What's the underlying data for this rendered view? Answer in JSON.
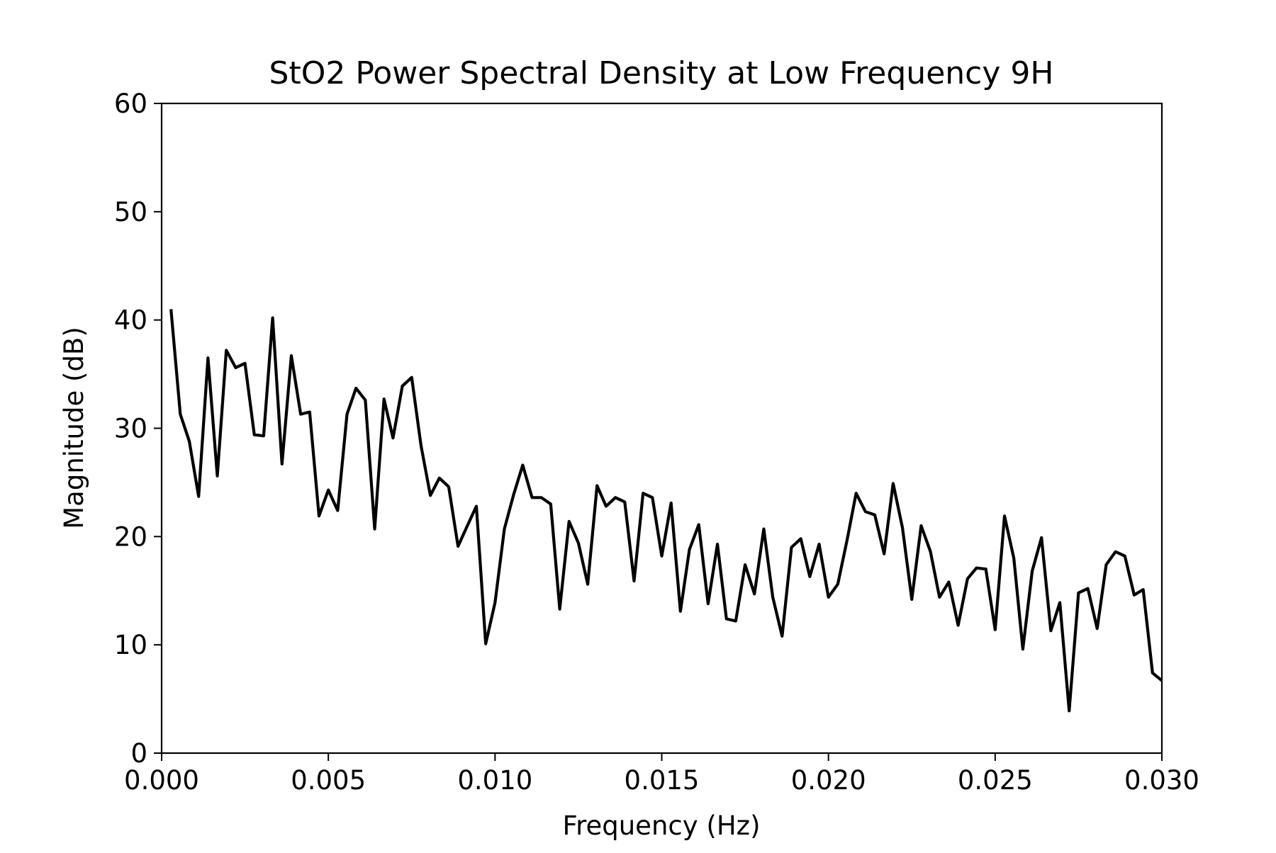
{
  "chart_data": {
    "type": "line",
    "title": "StO2 Power Spectral Density at Low Frequency 9H",
    "xlabel": "Frequency (Hz)",
    "ylabel": "Magnitude (dB)",
    "xlim": [
      0.0,
      0.03
    ],
    "ylim": [
      0,
      60
    ],
    "xticks": [
      0.0,
      0.005,
      0.01,
      0.015,
      0.02,
      0.025,
      0.03
    ],
    "xtick_labels": [
      "0.000",
      "0.005",
      "0.010",
      "0.015",
      "0.020",
      "0.025",
      "0.030"
    ],
    "yticks": [
      0,
      10,
      20,
      30,
      40,
      50,
      60
    ],
    "ytick_labels": [
      "0",
      "10",
      "20",
      "30",
      "40",
      "50",
      "60"
    ],
    "grid": false,
    "series": [
      {
        "color": "#000000",
        "x": [
          0.00028,
          0.00056,
          0.00083,
          0.00111,
          0.00139,
          0.00167,
          0.00194,
          0.00222,
          0.0025,
          0.00278,
          0.00306,
          0.00333,
          0.00361,
          0.00389,
          0.00417,
          0.00444,
          0.00472,
          0.005,
          0.00528,
          0.00556,
          0.00583,
          0.00611,
          0.00639,
          0.00667,
          0.00694,
          0.00722,
          0.0075,
          0.00778,
          0.00806,
          0.00833,
          0.00861,
          0.00889,
          0.00917,
          0.00944,
          0.00972,
          0.01,
          0.01028,
          0.01056,
          0.01083,
          0.01111,
          0.01139,
          0.01167,
          0.01194,
          0.01222,
          0.0125,
          0.01278,
          0.01306,
          0.01333,
          0.01361,
          0.01389,
          0.01417,
          0.01444,
          0.01472,
          0.015,
          0.01528,
          0.01556,
          0.01583,
          0.01611,
          0.01639,
          0.01667,
          0.01694,
          0.01722,
          0.0175,
          0.01778,
          0.01806,
          0.01833,
          0.01861,
          0.01889,
          0.01917,
          0.01944,
          0.01972,
          0.02,
          0.02028,
          0.02056,
          0.02083,
          0.02111,
          0.02139,
          0.02167,
          0.02194,
          0.02222,
          0.0225,
          0.02278,
          0.02306,
          0.02333,
          0.02361,
          0.02389,
          0.02417,
          0.02444,
          0.02472,
          0.025,
          0.02528,
          0.02556,
          0.02583,
          0.02611,
          0.02639,
          0.02667,
          0.02694,
          0.02722,
          0.0275,
          0.02778,
          0.02806,
          0.02833,
          0.02861,
          0.02889,
          0.02917,
          0.02944,
          0.02972,
          0.03
        ],
        "y": [
          41.0,
          31.3,
          28.8,
          23.7,
          36.5,
          25.6,
          37.2,
          35.6,
          36.0,
          29.4,
          29.3,
          40.2,
          26.7,
          36.7,
          31.3,
          31.5,
          21.9,
          24.3,
          22.4,
          31.3,
          33.7,
          32.6,
          20.7,
          32.7,
          29.1,
          33.9,
          34.7,
          28.4,
          23.8,
          25.4,
          24.6,
          19.1,
          21.0,
          22.8,
          10.1,
          13.9,
          20.7,
          23.9,
          26.6,
          23.6,
          23.6,
          23.0,
          13.3,
          21.4,
          19.4,
          15.6,
          24.7,
          22.8,
          23.6,
          23.2,
          15.9,
          24.0,
          23.6,
          18.2,
          23.1,
          13.1,
          18.8,
          21.1,
          13.8,
          19.3,
          12.4,
          12.2,
          17.4,
          14.7,
          20.7,
          14.4,
          10.8,
          19.0,
          19.8,
          16.3,
          19.3,
          14.4,
          15.6,
          19.7,
          24.0,
          22.3,
          22.0,
          18.4,
          24.9,
          20.8,
          14.2,
          21.0,
          18.6,
          14.4,
          15.8,
          11.8,
          16.1,
          17.1,
          17.0,
          11.4,
          21.9,
          18.0,
          9.6,
          16.8,
          19.9,
          11.3,
          13.9,
          3.9,
          14.8,
          15.2,
          11.5,
          17.4,
          18.6,
          18.2,
          14.6,
          15.1,
          7.4,
          6.7
        ]
      }
    ]
  }
}
